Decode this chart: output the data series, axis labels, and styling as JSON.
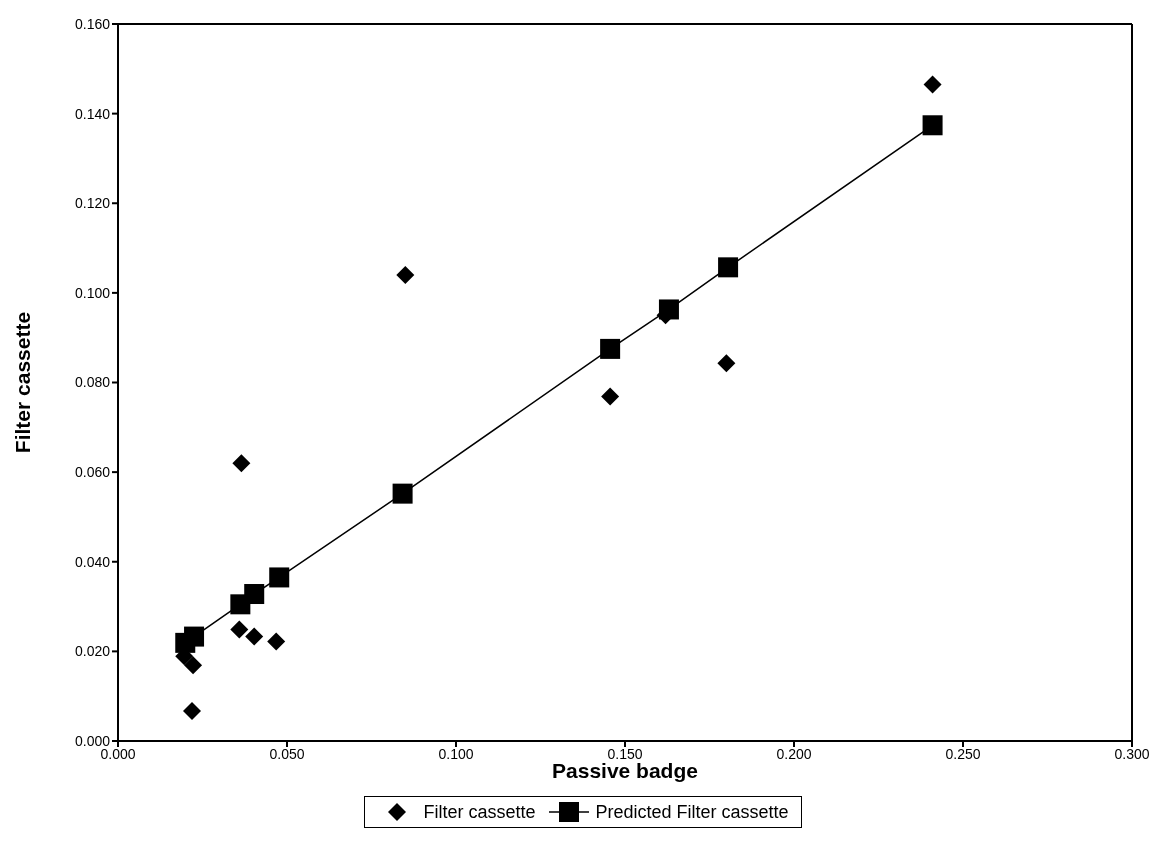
{
  "chart_data": {
    "type": "scatter",
    "xlabel": "Passive badge",
    "ylabel": "Filter cassette",
    "xlim": [
      0,
      0.3
    ],
    "xticks": [
      {
        "value": 0,
        "label": "0.000"
      },
      {
        "value": 0.05,
        "label": "0.050"
      },
      {
        "value": 0.1,
        "label": "0.100"
      },
      {
        "value": 0.15,
        "label": "0.150"
      },
      {
        "value": 0.2,
        "label": "0.200"
      },
      {
        "value": 0.25,
        "label": "0.250"
      },
      {
        "value": 0.3,
        "label": "0.300"
      }
    ],
    "ylim": [
      0,
      0.16
    ],
    "yticks": [
      {
        "value": 0,
        "label": "0.000"
      },
      {
        "value": 0.02,
        "label": "0.020"
      },
      {
        "value": 0.04,
        "label": "0.040"
      },
      {
        "value": 0.06,
        "label": "0.060"
      },
      {
        "value": 0.08,
        "label": "0.080"
      },
      {
        "value": 0.1,
        "label": "0.100"
      },
      {
        "value": 0.12,
        "label": "0.120"
      },
      {
        "value": 0.14,
        "label": "0.140"
      },
      {
        "value": 0.16,
        "label": "0.160"
      }
    ],
    "grid": false,
    "legend": "bottom",
    "series": [
      {
        "name": "Filter cassette",
        "type": "scatter",
        "marker": "diamond",
        "color": "#000000",
        "x": [
          0.0196,
          0.0222,
          0.0219,
          0.0359,
          0.0365,
          0.0403,
          0.0468,
          0.085,
          0.1456,
          0.162,
          0.18,
          0.241
        ],
        "values": [
          0.0189,
          0.0169,
          0.0067,
          0.0249,
          0.062,
          0.0233,
          0.0222,
          0.104,
          0.0769,
          0.095,
          0.0843,
          0.1465
        ]
      },
      {
        "name": "Predicted Filter cassette",
        "type": "line",
        "marker": "square",
        "line_style": "solid",
        "color": "#000000",
        "x": [
          0.0199,
          0.0225,
          0.0362,
          0.0403,
          0.0477,
          0.0842,
          0.1456,
          0.163,
          0.1805,
          0.241
        ],
        "values": [
          0.0219,
          0.0233,
          0.0305,
          0.0328,
          0.0365,
          0.0552,
          0.0875,
          0.0963,
          0.1057,
          0.1374
        ]
      }
    ]
  }
}
